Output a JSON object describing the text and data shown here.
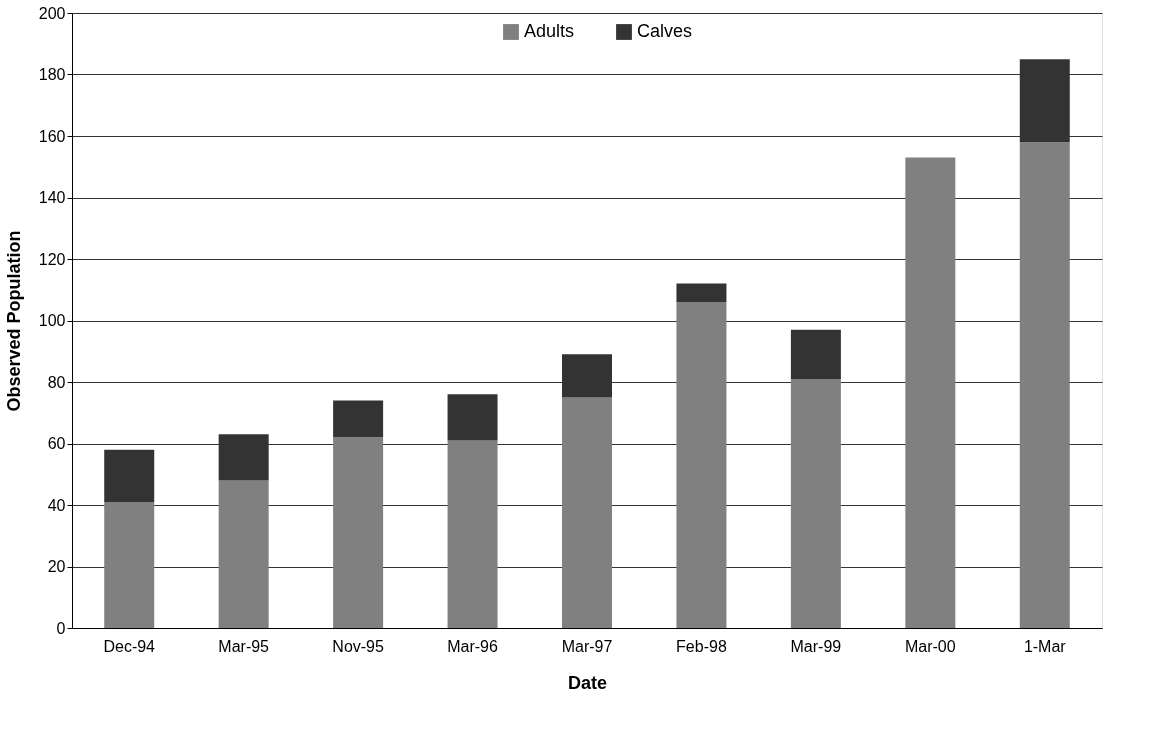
{
  "chart_data": {
    "type": "bar",
    "stacked": true,
    "xlabel": "Date",
    "ylabel": "Observed Population",
    "categories": [
      "Dec-94",
      "Mar-95",
      "Nov-95",
      "Mar-96",
      "Mar-97",
      "Feb-98",
      "Mar-99",
      "Mar-00",
      "1-Mar"
    ],
    "series": [
      {
        "name": "Adults",
        "color": "#808080",
        "values": [
          41,
          48,
          62,
          61,
          75,
          106,
          81,
          153,
          158
        ]
      },
      {
        "name": "Calves",
        "color": "#333333",
        "values": [
          17,
          15,
          12,
          15,
          14,
          6,
          16,
          0,
          27
        ]
      }
    ],
    "ylim": [
      0,
      200
    ],
    "yticks": [
      0,
      20,
      40,
      60,
      80,
      100,
      120,
      140,
      160,
      180,
      200
    ],
    "grid": "y",
    "legend": "top"
  }
}
